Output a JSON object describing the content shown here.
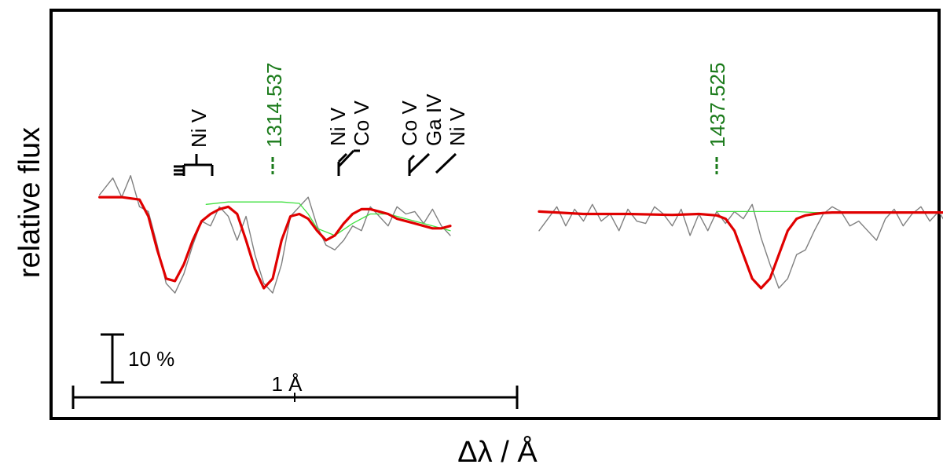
{
  "chart_data": {
    "type": "line",
    "title": "",
    "xlabel": "Δλ / Å",
    "ylabel": "relative flux",
    "grid": false,
    "scale_bars": {
      "flux_label": "10 %",
      "flux_value": 0.1,
      "wavelength_label": "1 Å",
      "wavelength_value": 1.0
    },
    "panels": [
      {
        "center_label": "1314.537",
        "center_wavelength": 1314.537,
        "series": [
          {
            "role": "observed",
            "color": "#808080",
            "x": [
              -0.39,
              -0.36,
              -0.34,
              -0.32,
              -0.3,
              -0.28,
              -0.26,
              -0.24,
              -0.22,
              -0.2,
              -0.18,
              -0.16,
              -0.14,
              -0.12,
              -0.1,
              -0.08,
              -0.06,
              -0.04,
              -0.02,
              0.0,
              0.02,
              0.04,
              0.06,
              0.08,
              0.1,
              0.12,
              0.14,
              0.16,
              0.18,
              0.2,
              0.22,
              0.24,
              0.26,
              0.28,
              0.3,
              0.32,
              0.34,
              0.36,
              0.38,
              0.4
            ],
            "y": [
              0.995,
              1.03,
              0.99,
              1.035,
              0.97,
              0.96,
              0.89,
              0.81,
              0.79,
              0.83,
              0.89,
              0.94,
              0.93,
              0.97,
              0.95,
              0.9,
              0.95,
              0.87,
              0.81,
              0.79,
              0.85,
              0.95,
              0.97,
              0.99,
              0.93,
              0.89,
              0.88,
              0.9,
              0.93,
              0.92,
              0.97,
              0.95,
              0.93,
              0.97,
              0.955,
              0.96,
              0.935,
              0.965,
              0.93,
              0.91
            ]
          },
          {
            "role": "model",
            "color": "#e00000",
            "x": [
              -0.39,
              -0.34,
              -0.3,
              -0.28,
              -0.26,
              -0.24,
              -0.22,
              -0.2,
              -0.18,
              -0.16,
              -0.14,
              -0.12,
              -0.1,
              -0.08,
              -0.06,
              -0.04,
              -0.02,
              0.0,
              0.02,
              0.04,
              0.06,
              0.08,
              0.1,
              0.12,
              0.14,
              0.16,
              0.18,
              0.2,
              0.22,
              0.24,
              0.26,
              0.28,
              0.3,
              0.32,
              0.34,
              0.36,
              0.38,
              0.4
            ],
            "y": [
              0.99,
              0.99,
              0.985,
              0.95,
              0.88,
              0.82,
              0.815,
              0.85,
              0.9,
              0.94,
              0.955,
              0.965,
              0.97,
              0.955,
              0.9,
              0.84,
              0.8,
              0.82,
              0.9,
              0.95,
              0.955,
              0.945,
              0.92,
              0.9,
              0.91,
              0.935,
              0.955,
              0.965,
              0.965,
              0.96,
              0.955,
              0.945,
              0.94,
              0.935,
              0.93,
              0.925,
              0.925,
              0.93
            ]
          },
          {
            "role": "model_without_line",
            "color": "#40e040",
            "x": [
              -0.15,
              -0.1,
              -0.06,
              -0.02,
              0.02,
              0.06,
              0.08,
              0.1,
              0.14,
              0.18,
              0.22,
              0.26,
              0.3,
              0.34,
              0.38,
              0.4
            ],
            "y": [
              0.975,
              0.98,
              0.98,
              0.98,
              0.98,
              0.977,
              0.955,
              0.925,
              0.91,
              0.935,
              0.955,
              0.955,
              0.945,
              0.935,
              0.925,
              0.92
            ]
          }
        ],
        "line_markers": [
          {
            "labels": [
              "Ni V"
            ],
            "color": "#000000"
          },
          {
            "labels": [
              "1314.537"
            ],
            "color": "#1a7a1a"
          },
          {
            "labels": [
              "Ni V",
              "Co V"
            ],
            "color": "#000000"
          },
          {
            "labels": [
              "Co V",
              "Ga IV",
              "Ni V"
            ],
            "color": "#000000"
          }
        ]
      },
      {
        "center_label": "1437.525",
        "center_wavelength": 1437.525,
        "series": [
          {
            "role": "observed",
            "color": "#808080",
            "x": [
              -0.4,
              -0.38,
              -0.36,
              -0.34,
              -0.32,
              -0.3,
              -0.28,
              -0.26,
              -0.24,
              -0.22,
              -0.2,
              -0.18,
              -0.16,
              -0.14,
              -0.12,
              -0.1,
              -0.08,
              -0.06,
              -0.04,
              -0.02,
              0.0,
              0.02,
              0.04,
              0.06,
              0.08,
              0.1,
              0.12,
              0.14,
              0.16,
              0.18,
              0.2,
              0.22,
              0.24,
              0.26,
              0.28,
              0.3,
              0.32,
              0.34,
              0.36,
              0.38,
              0.4,
              0.42,
              0.44,
              0.46,
              0.48,
              0.5,
              0.52,
              0.54,
              0.56,
              0.58,
              0.6,
              0.62,
              0.64,
              0.66,
              0.68,
              0.7,
              0.72,
              0.74,
              0.76,
              0.78,
              0.8
            ],
            "y": [
              0.92,
              0.945,
              0.97,
              0.93,
              0.965,
              0.94,
              0.975,
              0.94,
              0.955,
              0.92,
              0.965,
              0.94,
              0.935,
              0.97,
              0.955,
              0.93,
              0.965,
              0.91,
              0.955,
              0.92,
              0.96,
              0.935,
              0.96,
              0.945,
              0.975,
              0.905,
              0.85,
              0.8,
              0.82,
              0.87,
              0.88,
              0.92,
              0.955,
              0.97,
              0.96,
              0.93,
              0.94,
              0.92,
              0.9,
              0.945,
              0.965,
              0.93,
              0.955,
              0.97,
              0.94,
              0.96,
              0.93,
              0.955,
              0.945,
              0.92,
              0.975,
              0.955,
              0.945,
              0.96,
              0.945,
              0.97,
              0.96,
              0.945,
              0.955,
              0.91,
              0.905
            ]
          },
          {
            "role": "model",
            "color": "#e00000",
            "x": [
              -0.4,
              -0.3,
              -0.2,
              -0.1,
              -0.04,
              0.0,
              0.02,
              0.04,
              0.06,
              0.08,
              0.1,
              0.12,
              0.14,
              0.16,
              0.18,
              0.2,
              0.22,
              0.24,
              0.26,
              0.3,
              0.4,
              0.5,
              0.6,
              0.7,
              0.8
            ],
            "y": [
              0.96,
              0.955,
              0.955,
              0.953,
              0.955,
              0.952,
              0.945,
              0.92,
              0.87,
              0.82,
              0.8,
              0.82,
              0.87,
              0.92,
              0.945,
              0.952,
              0.955,
              0.957,
              0.958,
              0.958,
              0.958,
              0.958,
              0.958,
              0.96,
              0.955
            ]
          },
          {
            "role": "model_without_line",
            "color": "#40e040",
            "x": [
              0.0,
              0.06,
              0.1,
              0.14,
              0.18,
              0.22,
              0.26
            ],
            "y": [
              0.96,
              0.96,
              0.96,
              0.96,
              0.96,
              0.958,
              0.958
            ]
          }
        ],
        "line_markers": [
          {
            "labels": [
              "1437.525"
            ],
            "color": "#1a7a1a"
          }
        ]
      }
    ]
  }
}
